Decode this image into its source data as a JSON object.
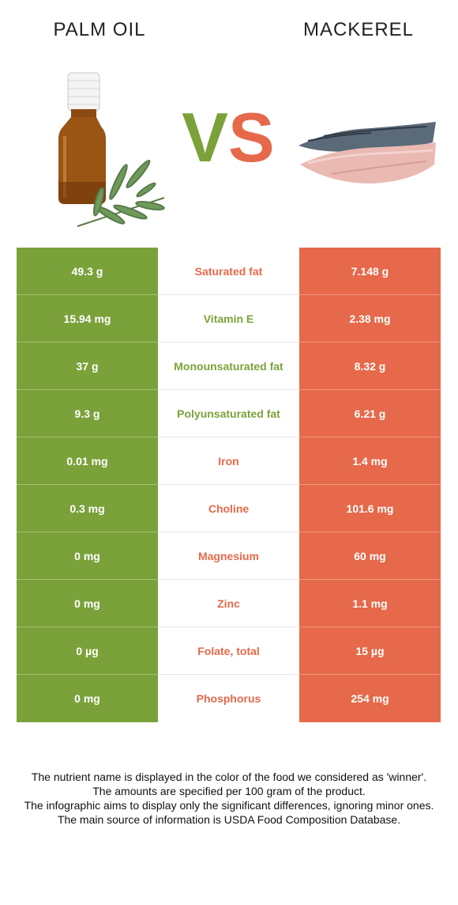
{
  "header": {
    "left_title": "PALM OIL",
    "right_title": "MACKEREL",
    "vs_v": "V",
    "vs_s": "S"
  },
  "colors": {
    "left": "#7ba23a",
    "right": "#e5694a"
  },
  "rows": [
    {
      "left": "49.3 g",
      "nutrient": "Saturated fat",
      "right": "7.148 g",
      "winner": "right"
    },
    {
      "left": "15.94 mg",
      "nutrient": "Vitamin E",
      "right": "2.38 mg",
      "winner": "left"
    },
    {
      "left": "37 g",
      "nutrient": "Monounsaturated fat",
      "right": "8.32 g",
      "winner": "left"
    },
    {
      "left": "9.3 g",
      "nutrient": "Polyunsaturated fat",
      "right": "6.21 g",
      "winner": "left"
    },
    {
      "left": "0.01 mg",
      "nutrient": "Iron",
      "right": "1.4 mg",
      "winner": "right"
    },
    {
      "left": "0.3 mg",
      "nutrient": "Choline",
      "right": "101.6 mg",
      "winner": "right"
    },
    {
      "left": "0 mg",
      "nutrient": "Magnesium",
      "right": "60 mg",
      "winner": "right"
    },
    {
      "left": "0 mg",
      "nutrient": "Zinc",
      "right": "1.1 mg",
      "winner": "right"
    },
    {
      "left": "0 µg",
      "nutrient": "Folate, total",
      "right": "15 µg",
      "winner": "right"
    },
    {
      "left": "0 mg",
      "nutrient": "Phosphorus",
      "right": "254 mg",
      "winner": "right"
    }
  ],
  "notes": [
    "The nutrient name is displayed in the color of the food we considered as 'winner'.",
    "The amounts are specified per 100 gram of the product.",
    "The infographic aims to display only the significant differences, ignoring minor ones.",
    "The main source of information is USDA Food Composition Database."
  ]
}
